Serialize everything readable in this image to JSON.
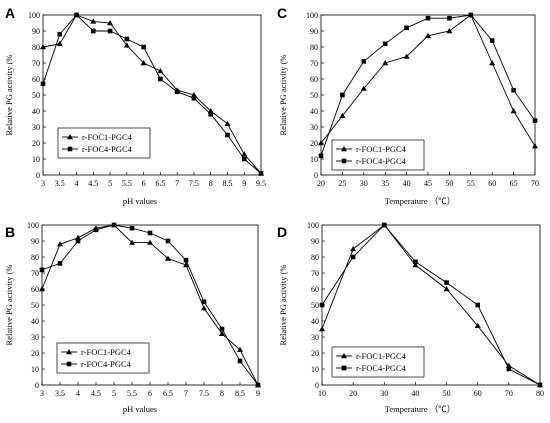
{
  "chart_data": [
    {
      "panel": "A",
      "type": "line",
      "xlabel": "pH values",
      "ylabel": "Relative PG activity (%",
      "xlim": [
        3,
        9.5
      ],
      "ylim": [
        0,
        100
      ],
      "xticks": [
        "3",
        "3.5",
        "4",
        "4.5",
        "5",
        "5.5",
        "6",
        "6.5",
        "7",
        "7.5",
        "8",
        "8.5",
        "9",
        "9.5"
      ],
      "yticks": [
        "0",
        "10",
        "20",
        "30",
        "40",
        "50",
        "60",
        "70",
        "80",
        "90",
        "100"
      ],
      "legend_position": "bottom-left",
      "grid": false,
      "series": [
        {
          "name": "r-FOC1-PGC4",
          "marker": "triangle",
          "x": [
            3,
            3.5,
            4,
            4.5,
            5,
            5.5,
            6,
            6.5,
            7,
            7.5,
            8,
            8.5,
            9,
            9.5
          ],
          "y": [
            80,
            82,
            100,
            96,
            95,
            81,
            70,
            65,
            53,
            50,
            40,
            32,
            13,
            1
          ]
        },
        {
          "name": "r-FOC4-PGC4",
          "marker": "square",
          "x": [
            3,
            3.5,
            4,
            4.5,
            5,
            5.5,
            6,
            6.5,
            7,
            7.5,
            8,
            8.5,
            9,
            9.5
          ],
          "y": [
            57,
            88,
            100,
            90,
            90,
            85,
            80,
            60,
            52,
            48,
            38,
            25,
            10,
            1
          ]
        }
      ]
    },
    {
      "panel": "C",
      "type": "line",
      "xlabel": "Temperature （℃）",
      "ylabel": "Relative PG activity (%",
      "xlim": [
        20,
        70
      ],
      "ylim": [
        0,
        100
      ],
      "xticks": [
        "20",
        "25",
        "30",
        "35",
        "40",
        "45",
        "50",
        "55",
        "60",
        "65",
        "70"
      ],
      "yticks": [
        "0",
        "10",
        "20",
        "30",
        "40",
        "50",
        "60",
        "70",
        "80",
        "90",
        "100"
      ],
      "legend_position": "bottom-left",
      "grid": false,
      "series": [
        {
          "name": "r-FOC1-PGC4",
          "marker": "triangle",
          "x": [
            20,
            25,
            30,
            35,
            40,
            45,
            50,
            55,
            60,
            65,
            70
          ],
          "y": [
            20,
            37,
            54,
            70,
            74,
            87,
            90,
            100,
            70,
            40,
            18
          ]
        },
        {
          "name": "r-FOC4-PGC4",
          "marker": "square",
          "x": [
            20,
            25,
            30,
            35,
            40,
            45,
            50,
            55,
            60,
            65,
            70
          ],
          "y": [
            12,
            50,
            71,
            82,
            92,
            98,
            98,
            100,
            84,
            53,
            34
          ]
        }
      ]
    },
    {
      "panel": "B",
      "type": "line",
      "xlabel": "pH values",
      "ylabel": "Relative PG activity (%",
      "xlim": [
        3,
        9
      ],
      "ylim": [
        0,
        100
      ],
      "xticks": [
        "3",
        "3.5",
        "4",
        "4.5",
        "5",
        "5.5",
        "6",
        "6.5",
        "7",
        "7.5",
        "8",
        "8.5",
        "9"
      ],
      "yticks": [
        "0",
        "10",
        "20",
        "30",
        "40",
        "50",
        "60",
        "70",
        "80",
        "90",
        "100"
      ],
      "legend_position": "bottom-left",
      "grid": false,
      "series": [
        {
          "name": "r-FOC1-PGC4",
          "marker": "triangle",
          "x": [
            3,
            3.5,
            4,
            4.5,
            5,
            5.5,
            6,
            6.5,
            7,
            7.5,
            8,
            8.5,
            9
          ],
          "y": [
            60,
            88,
            92,
            98,
            100,
            89,
            89,
            79,
            75,
            48,
            32,
            22,
            0
          ]
        },
        {
          "name": "r-FOC4-PGC4",
          "marker": "square",
          "x": [
            3,
            3.5,
            4,
            4.5,
            5,
            5.5,
            6,
            6.5,
            7,
            7.5,
            8,
            8.5,
            9
          ],
          "y": [
            72,
            76,
            90,
            97,
            100,
            98,
            95,
            90,
            78,
            52,
            35,
            15,
            0
          ]
        }
      ]
    },
    {
      "panel": "D",
      "type": "line",
      "xlabel": "Temperature （℃）",
      "ylabel": "Relative PG activity (%",
      "xlim": [
        10,
        80
      ],
      "ylim": [
        0,
        100
      ],
      "xticks": [
        "10",
        "20",
        "30",
        "40",
        "50",
        "60",
        "70",
        "80"
      ],
      "yticks": [
        "0",
        "10",
        "20",
        "30",
        "40",
        "50",
        "60",
        "70",
        "80",
        "90",
        "100"
      ],
      "legend_position": "bottom-left",
      "grid": false,
      "series": [
        {
          "name": "r-FOC1-PGC4",
          "marker": "triangle",
          "x": [
            10,
            20,
            30,
            40,
            50,
            60,
            70,
            80
          ],
          "y": [
            35,
            85,
            100,
            75,
            60,
            37,
            12,
            0
          ]
        },
        {
          "name": "r-FOC4-PGC4",
          "marker": "square",
          "x": [
            10,
            20,
            30,
            40,
            50,
            60,
            70,
            80
          ],
          "y": [
            50,
            80,
            100,
            77,
            64,
            50,
            10,
            0
          ]
        }
      ]
    }
  ]
}
